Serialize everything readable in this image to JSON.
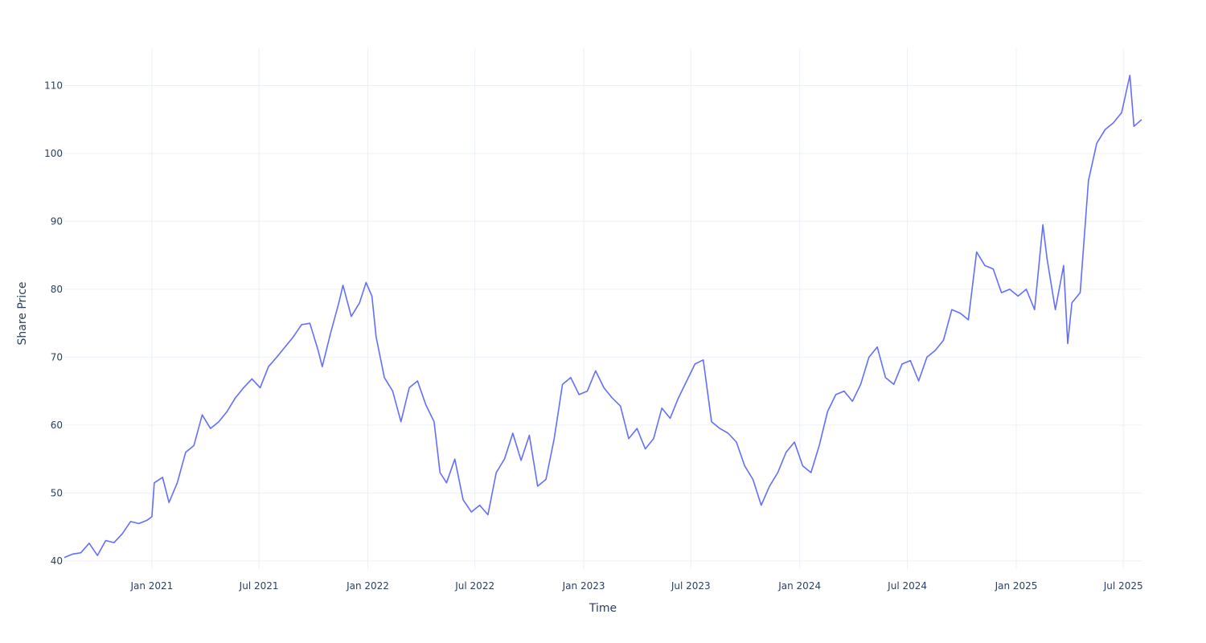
{
  "chart_data": {
    "type": "line",
    "title": "",
    "xlabel": "Time",
    "ylabel": "Share Price",
    "x_range": [
      "2020-08-06",
      "2025-08-01"
    ],
    "ylim": [
      38.8,
      115.5
    ],
    "grid": true,
    "legend": "none",
    "colors": {
      "line": "#636efa",
      "grid": "#ebf0f8",
      "text": "#2a3f5f"
    },
    "x_ticks": [
      {
        "date": "2021-01-01",
        "label": "Jan 2021"
      },
      {
        "date": "2021-07-01",
        "label": "Jul 2021"
      },
      {
        "date": "2022-01-01",
        "label": "Jan 2022"
      },
      {
        "date": "2022-07-01",
        "label": "Jul 2022"
      },
      {
        "date": "2023-01-01",
        "label": "Jan 2023"
      },
      {
        "date": "2023-07-01",
        "label": "Jul 2023"
      },
      {
        "date": "2024-01-01",
        "label": "Jan 2024"
      },
      {
        "date": "2024-07-01",
        "label": "Jul 2024"
      },
      {
        "date": "2025-01-01",
        "label": "Jan 2025"
      },
      {
        "date": "2025-07-01",
        "label": "Jul 2025"
      }
    ],
    "y_ticks": [
      40,
      50,
      60,
      70,
      80,
      90,
      100,
      110
    ],
    "series": [
      {
        "points": [
          [
            "2020-08-06",
            40.5
          ],
          [
            "2020-08-20",
            41.0
          ],
          [
            "2020-09-03",
            41.2
          ],
          [
            "2020-09-17",
            42.6
          ],
          [
            "2020-10-01",
            40.8
          ],
          [
            "2020-10-15",
            43.0
          ],
          [
            "2020-10-29",
            42.7
          ],
          [
            "2020-11-12",
            44.0
          ],
          [
            "2020-11-26",
            45.8
          ],
          [
            "2020-12-10",
            45.5
          ],
          [
            "2020-12-24",
            46.0
          ],
          [
            "2021-01-01",
            46.5
          ],
          [
            "2021-01-05",
            51.5
          ],
          [
            "2021-01-19",
            52.3
          ],
          [
            "2021-01-30",
            48.6
          ],
          [
            "2021-02-13",
            51.5
          ],
          [
            "2021-02-27",
            56.0
          ],
          [
            "2021-03-13",
            57.0
          ],
          [
            "2021-03-27",
            61.5
          ],
          [
            "2021-04-10",
            59.5
          ],
          [
            "2021-04-24",
            60.5
          ],
          [
            "2021-05-08",
            62.0
          ],
          [
            "2021-05-22",
            64.0
          ],
          [
            "2021-06-05",
            65.5
          ],
          [
            "2021-06-19",
            66.8
          ],
          [
            "2021-07-03",
            65.5
          ],
          [
            "2021-07-17",
            68.6
          ],
          [
            "2021-07-31",
            70.0
          ],
          [
            "2021-08-14",
            71.5
          ],
          [
            "2021-08-28",
            73.0
          ],
          [
            "2021-09-11",
            74.8
          ],
          [
            "2021-09-25",
            75.0
          ],
          [
            "2021-10-09",
            71.0
          ],
          [
            "2021-10-16",
            68.6
          ],
          [
            "2021-10-30",
            73.5
          ],
          [
            "2021-11-13",
            78.0
          ],
          [
            "2021-11-20",
            80.6
          ],
          [
            "2021-12-04",
            76.0
          ],
          [
            "2021-12-18",
            78.0
          ],
          [
            "2021-12-29",
            81.0
          ],
          [
            "2022-01-08",
            79.0
          ],
          [
            "2022-01-15",
            73.0
          ],
          [
            "2022-01-29",
            67.0
          ],
          [
            "2022-02-12",
            65.0
          ],
          [
            "2022-02-26",
            60.5
          ],
          [
            "2022-03-12",
            65.5
          ],
          [
            "2022-03-26",
            66.5
          ],
          [
            "2022-04-09",
            63.0
          ],
          [
            "2022-04-23",
            60.5
          ],
          [
            "2022-05-03",
            53.0
          ],
          [
            "2022-05-14",
            51.5
          ],
          [
            "2022-05-28",
            55.0
          ],
          [
            "2022-06-11",
            49.0
          ],
          [
            "2022-06-25",
            47.2
          ],
          [
            "2022-07-09",
            48.2
          ],
          [
            "2022-07-23",
            46.8
          ],
          [
            "2022-08-06",
            53.0
          ],
          [
            "2022-08-20",
            55.0
          ],
          [
            "2022-09-03",
            58.8
          ],
          [
            "2022-09-17",
            54.8
          ],
          [
            "2022-10-01",
            58.5
          ],
          [
            "2022-10-15",
            51.0
          ],
          [
            "2022-10-29",
            52.0
          ],
          [
            "2022-11-12",
            58.0
          ],
          [
            "2022-11-26",
            66.0
          ],
          [
            "2022-12-10",
            67.0
          ],
          [
            "2022-12-24",
            64.5
          ],
          [
            "2023-01-07",
            65.0
          ],
          [
            "2023-01-21",
            68.0
          ],
          [
            "2023-02-04",
            65.5
          ],
          [
            "2023-02-18",
            64.0
          ],
          [
            "2023-03-04",
            62.8
          ],
          [
            "2023-03-18",
            58.0
          ],
          [
            "2023-04-01",
            59.5
          ],
          [
            "2023-04-15",
            56.5
          ],
          [
            "2023-04-29",
            58.0
          ],
          [
            "2023-05-13",
            62.5
          ],
          [
            "2023-05-27",
            61.0
          ],
          [
            "2023-06-10",
            64.0
          ],
          [
            "2023-06-24",
            66.5
          ],
          [
            "2023-07-08",
            69.0
          ],
          [
            "2023-07-22",
            69.6
          ],
          [
            "2023-08-05",
            60.5
          ],
          [
            "2023-08-19",
            59.5
          ],
          [
            "2023-09-02",
            58.8
          ],
          [
            "2023-09-16",
            57.5
          ],
          [
            "2023-09-30",
            54.0
          ],
          [
            "2023-10-14",
            52.0
          ],
          [
            "2023-10-28",
            48.2
          ],
          [
            "2023-11-11",
            51.0
          ],
          [
            "2023-11-25",
            53.0
          ],
          [
            "2023-12-09",
            56.0
          ],
          [
            "2023-12-23",
            57.5
          ],
          [
            "2024-01-06",
            54.0
          ],
          [
            "2024-01-20",
            53.0
          ],
          [
            "2024-02-03",
            57.0
          ],
          [
            "2024-02-17",
            62.0
          ],
          [
            "2024-03-02",
            64.5
          ],
          [
            "2024-03-16",
            65.0
          ],
          [
            "2024-03-30",
            63.5
          ],
          [
            "2024-04-13",
            66.0
          ],
          [
            "2024-04-27",
            70.0
          ],
          [
            "2024-05-11",
            71.5
          ],
          [
            "2024-05-25",
            67.0
          ],
          [
            "2024-06-08",
            66.0
          ],
          [
            "2024-06-22",
            69.0
          ],
          [
            "2024-07-06",
            69.5
          ],
          [
            "2024-07-20",
            66.5
          ],
          [
            "2024-08-03",
            70.0
          ],
          [
            "2024-08-17",
            71.0
          ],
          [
            "2024-08-31",
            72.5
          ],
          [
            "2024-09-14",
            77.0
          ],
          [
            "2024-09-28",
            76.5
          ],
          [
            "2024-10-12",
            75.5
          ],
          [
            "2024-10-26",
            85.5
          ],
          [
            "2024-11-09",
            83.5
          ],
          [
            "2024-11-23",
            83.0
          ],
          [
            "2024-12-07",
            79.5
          ],
          [
            "2024-12-21",
            80.0
          ],
          [
            "2025-01-04",
            79.0
          ],
          [
            "2025-01-18",
            80.0
          ],
          [
            "2025-02-01",
            77.0
          ],
          [
            "2025-02-15",
            89.5
          ],
          [
            "2025-02-22",
            84.5
          ],
          [
            "2025-03-08",
            77.0
          ],
          [
            "2025-03-22",
            83.5
          ],
          [
            "2025-03-29",
            72.0
          ],
          [
            "2025-04-05",
            78.0
          ],
          [
            "2025-04-19",
            79.5
          ],
          [
            "2025-05-03",
            96.0
          ],
          [
            "2025-05-17",
            101.5
          ],
          [
            "2025-05-31",
            103.5
          ],
          [
            "2025-06-14",
            104.5
          ],
          [
            "2025-06-28",
            106.0
          ],
          [
            "2025-07-12",
            111.5
          ],
          [
            "2025-07-19",
            104.0
          ],
          [
            "2025-08-01",
            105.0
          ]
        ]
      }
    ]
  }
}
